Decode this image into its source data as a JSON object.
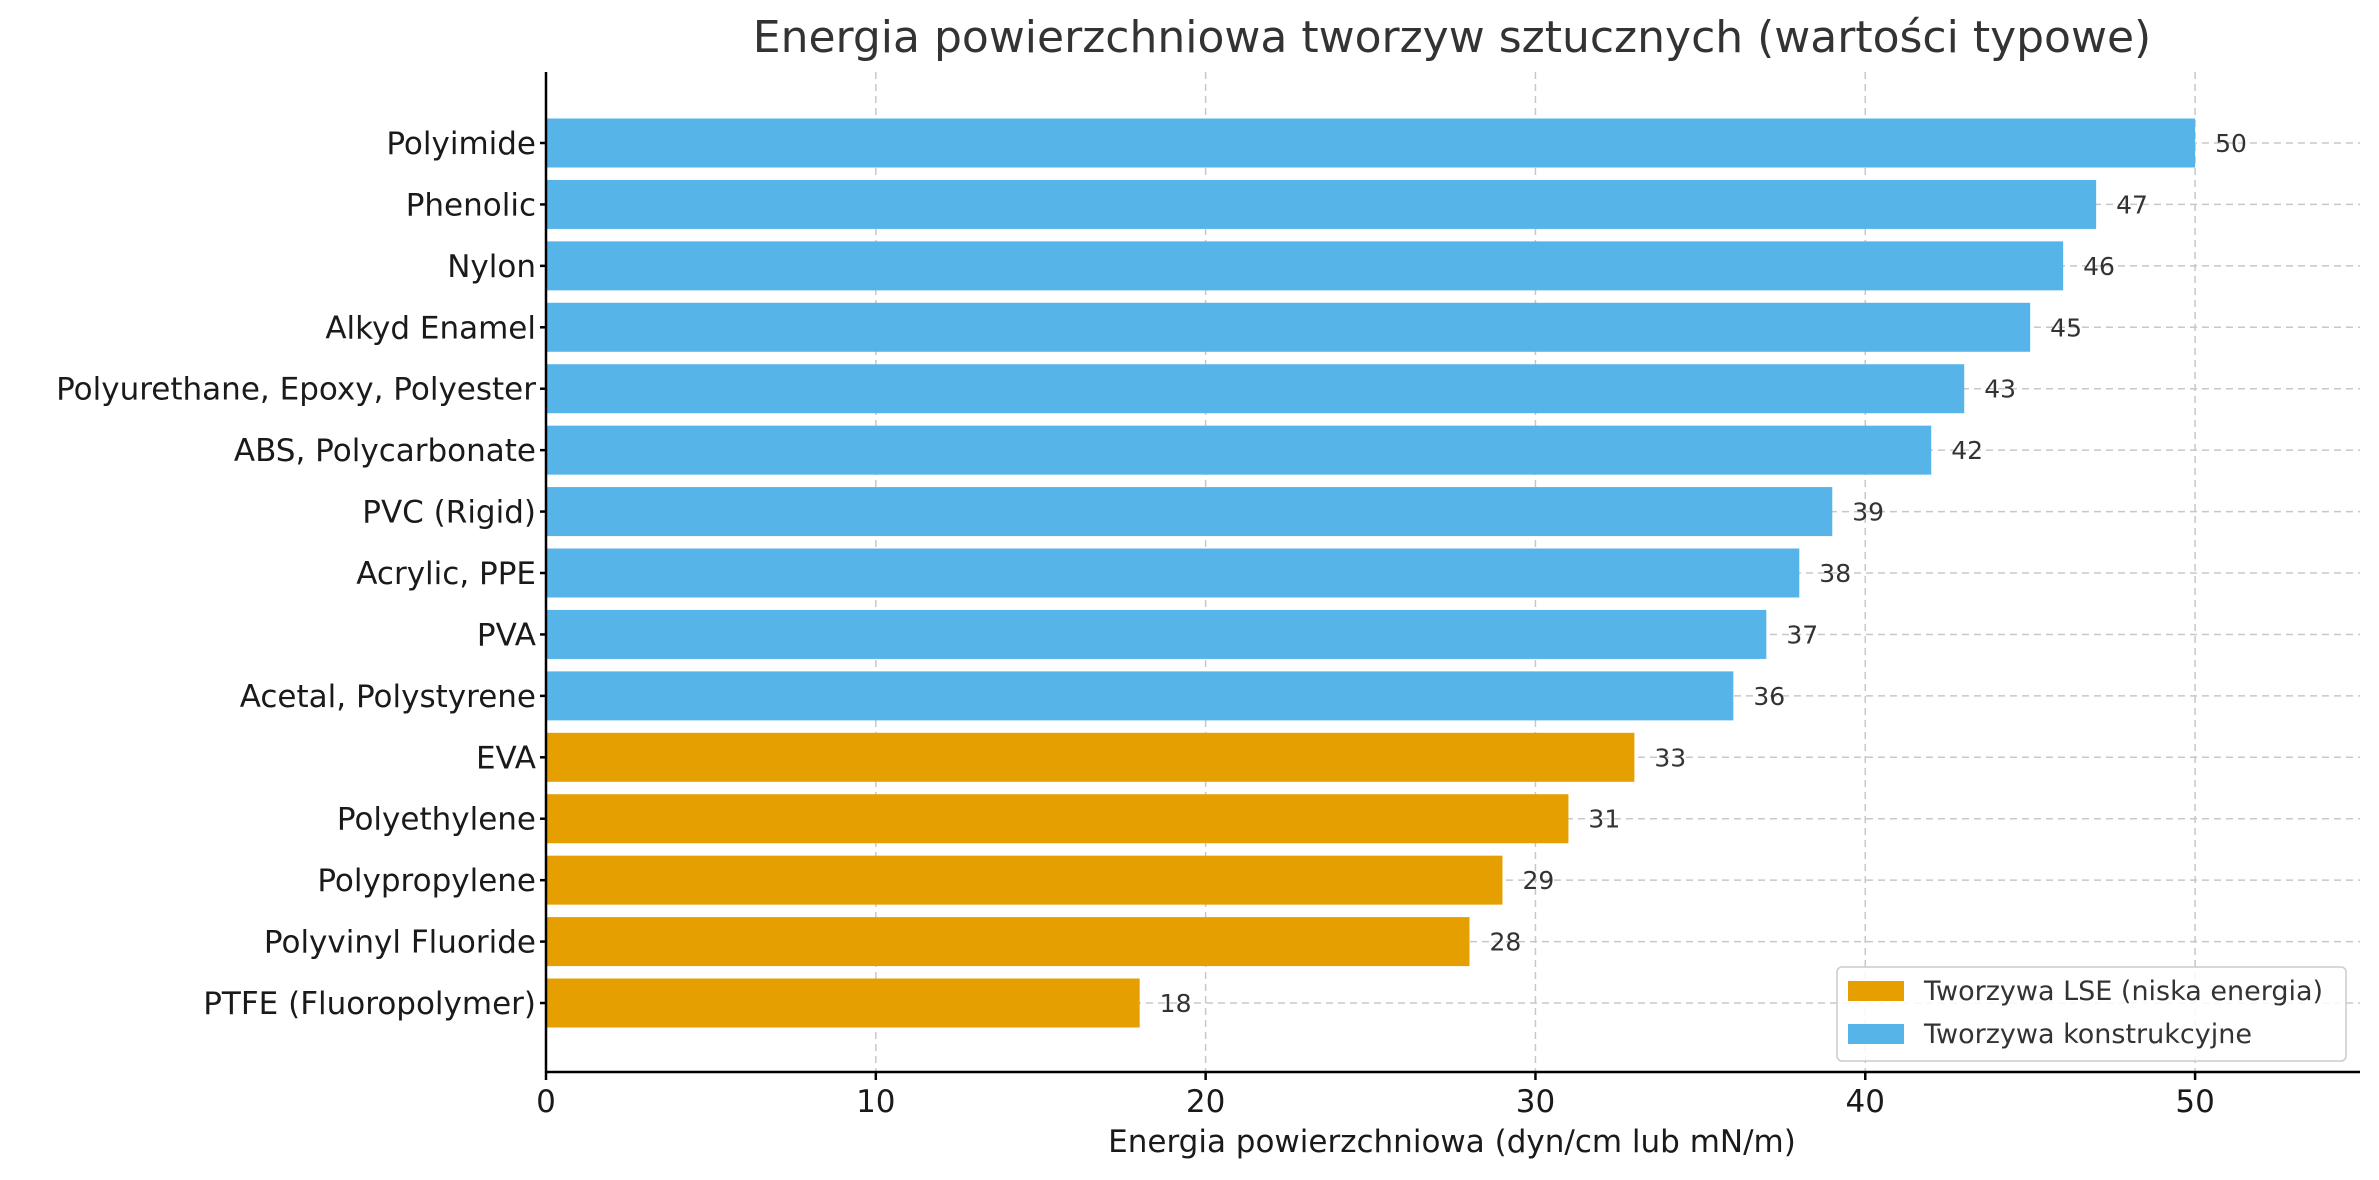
{
  "chart_data": {
    "type": "bar",
    "orientation": "horizontal",
    "title": "Energia powierzchniowa tworzyw sztucznych (wartości typowe)",
    "xlabel": "Energia powierzchniowa (dyn/cm lub mN/m)",
    "ylabel": "",
    "xlim": [
      0,
      55
    ],
    "xticks": [
      0,
      10,
      20,
      30,
      40,
      50
    ],
    "grid": true,
    "legend_position": "bottom-right",
    "categories": [
      "PTFE (Fluoropolymer)",
      "Polyvinyl Fluoride",
      "Polypropylene",
      "Polyethylene",
      "EVA",
      "Acetal, Polystyrene",
      "PVA",
      "Acrylic, PPE",
      "PVC (Rigid)",
      "ABS, Polycarbonate",
      "Polyurethane, Epoxy, Polyester",
      "Alkyd Enamel",
      "Nylon",
      "Phenolic",
      "Polyimide"
    ],
    "values": [
      18,
      28,
      29,
      31,
      33,
      36,
      37,
      38,
      39,
      42,
      43,
      45,
      46,
      47,
      50
    ],
    "groups": [
      "lse",
      "lse",
      "lse",
      "lse",
      "lse",
      "eng",
      "eng",
      "eng",
      "eng",
      "eng",
      "eng",
      "eng",
      "eng",
      "eng",
      "eng"
    ],
    "series": [
      {
        "key": "lse",
        "name": "Tworzywa LSE (niska energia)",
        "color": "#E69F00"
      },
      {
        "key": "eng",
        "name": "Tworzywa konstrukcyjne",
        "color": "#56B4E9"
      }
    ]
  }
}
